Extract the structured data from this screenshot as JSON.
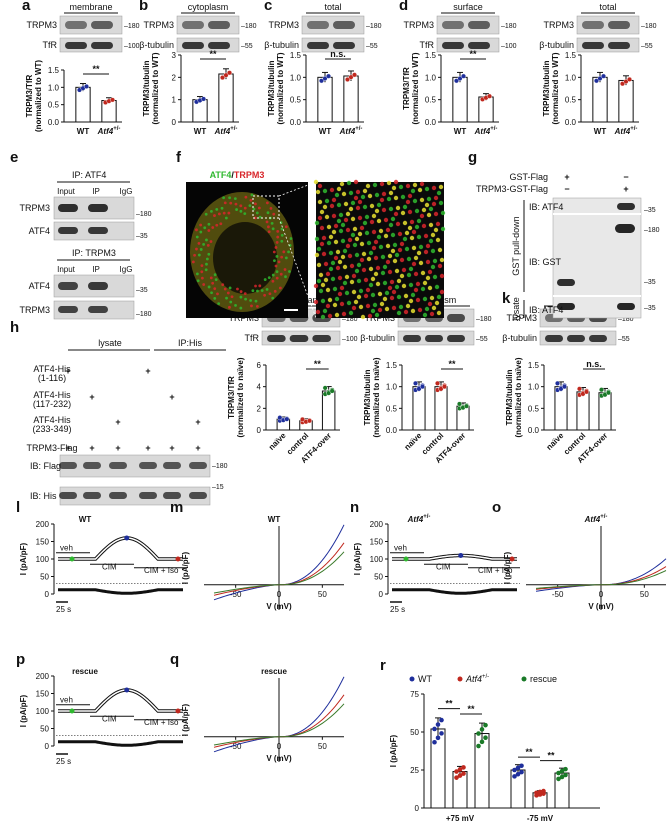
{
  "panels": {
    "a": {
      "letter": "a",
      "header": "membrane",
      "blot_top": "TRPM3",
      "blot_bot": "TfR",
      "mw_top": "180",
      "mw_bot": "100",
      "ylabel1": "TRPM3/TfR",
      "ylabel2": "(normalized to WT)",
      "ticks": [
        "0.0",
        "0.5",
        "1.0",
        "1.5"
      ],
      "sig": "**",
      "x": [
        "WT",
        "Atf4+/-"
      ]
    },
    "b": {
      "letter": "b",
      "header": "cytoplasm",
      "blot_top": "TRPM3",
      "blot_bot": "β-tubulin",
      "mw_top": "180",
      "mw_bot": "55",
      "ylabel1": "TRPM3/tubulin",
      "ylabel2": "(normalized to WT)",
      "ticks": [
        "0",
        "1",
        "2",
        "3"
      ],
      "sig": "**",
      "x": [
        "WT",
        "Atf4+/-"
      ]
    },
    "c": {
      "letter": "c",
      "header": "total",
      "blot_top": "TRPM3",
      "blot_bot": "β-tubulin",
      "mw_top": "180",
      "mw_bot": "55",
      "ylabel1": "TRPM3/tubulin",
      "ylabel2": "(normalized to WT)",
      "ticks": [
        "0.0",
        "0.5",
        "1.0",
        "1.5"
      ],
      "sig": "n.s.",
      "x": [
        "WT",
        "Atf4+/-"
      ]
    },
    "d": {
      "letter": "d",
      "header": "surface",
      "blot_top": "TRPM3",
      "blot_bot": "TfR",
      "mw_top": "180",
      "mw_bot": "100",
      "ylabel1": "TRPM3/TfR",
      "ylabel2": "(normalized to WT)",
      "ticks": [
        "0.0",
        "0.5",
        "1.0",
        "1.5"
      ],
      "sig": "**",
      "x": [
        "WT",
        "Atf4+/-"
      ]
    },
    "d2": {
      "header": "total",
      "blot_top": "TRPM3",
      "blot_bot": "β-tubulin",
      "mw_top": "180",
      "mw_bot": "55",
      "ylabel1": "TRPM3/tubulin",
      "ylabel2": "(normalized to WT)",
      "ticks": [
        "0.0",
        "0.5",
        "1.0",
        "1.5"
      ],
      "x": [
        "WT",
        "Atf4+/-"
      ]
    },
    "e": {
      "letter": "e",
      "ip1": "IP:",
      "ip1_target": "ATF4",
      "ip2": "IP:",
      "ip2_target": "TRPM3",
      "cols": [
        "Input",
        "IP",
        "IgG"
      ],
      "rows1": [
        "TRPM3",
        "ATF4"
      ],
      "rows2": [
        "ATF4",
        "TRPM3"
      ],
      "mw": [
        "180",
        "35",
        "35",
        "180"
      ]
    },
    "f": {
      "letter": "f",
      "title_green": "ATF4",
      "title_sep": "/",
      "title_red": "TRPM3"
    },
    "g": {
      "letter": "g",
      "row1": "GST-Flag",
      "row2": "TRPM3-GST-Flag",
      "signs1": [
        "+",
        "−"
      ],
      "signs2": [
        "−",
        "+"
      ],
      "side1": "GST pull-down",
      "side2": "lysate",
      "ib1": "IB: ATF4",
      "ib2": "IB:  GST",
      "ib3": "IB: ATF4",
      "mw": [
        "35",
        "180",
        "35",
        "35"
      ]
    },
    "h": {
      "letter": "h",
      "lysate": "lysate",
      "iphis": "IP:His",
      "rows": [
        "ATF4-His",
        "(1-116)",
        "ATF4-His",
        "(117-232)",
        "ATF4-His",
        "(233-349)",
        "TRPM3-Flag"
      ],
      "ib1": "IB: Flag",
      "ib2": "IB: His",
      "mw": [
        "180",
        "15"
      ],
      "plus": "+"
    },
    "i": {
      "letter": "i",
      "header": "membrane",
      "blot_top": "TRPM3",
      "blot_bot": "TfR",
      "mw_top": "180",
      "mw_bot": "100",
      "ylabel1": "TRPM3/TfR",
      "ylabel2": "(normalized to naïve)",
      "ticks": [
        "0",
        "2",
        "4",
        "6"
      ],
      "sig": "**",
      "x": [
        "naïve",
        "control",
        "ATF4-over"
      ]
    },
    "j": {
      "letter": "j",
      "header": "cytoplasm",
      "blot_top": "TRPM3",
      "blot_bot": "β-tubulin",
      "mw_top": "180",
      "mw_bot": "55",
      "ylabel1": "TRPM3/tubulin",
      "ylabel2": "(normalized to naïve)",
      "ticks": [
        "0.0",
        "0.5",
        "1.0",
        "1.5"
      ],
      "sig": "**",
      "x": [
        "naïve",
        "control",
        "ATF4-over"
      ]
    },
    "k": {
      "letter": "k",
      "header": "total",
      "blot_top": "TRPM3",
      "blot_bot": "β-tubulin",
      "mw_top": "180",
      "mw_bot": "55",
      "ylabel1": "TRPM3/tubulin",
      "ylabel2": "(normalized to naïve)",
      "ticks": [
        "0.0",
        "0.5",
        "1.0",
        "1.5"
      ],
      "sig": "n.s.",
      "x": [
        "naïve",
        "control",
        "ATF4-over"
      ]
    },
    "l": {
      "letter": "l",
      "title": "WT",
      "ylabel": "I (pA/pF)",
      "ticks": [
        "200",
        "150",
        "100",
        "50",
        "0"
      ],
      "veh": "veh",
      "cim": "CIM",
      "cimiso": "CIM + Iso",
      "scale": "25 s"
    },
    "m": {
      "letter": "m",
      "title": "WT",
      "ylabel": "I (pA/pF)",
      "xlabel": "V (mV)",
      "xt": [
        "-50",
        "0",
        "50"
      ]
    },
    "n": {
      "letter": "n",
      "title": "Atf4+/-",
      "ylabel": "I (pA/pF)",
      "ticks": [
        "200",
        "150",
        "100",
        "50",
        "0"
      ],
      "veh": "veh",
      "cim": "CIM",
      "cimiso": "CIM + Iso",
      "scale": "25 s"
    },
    "o": {
      "letter": "o",
      "title": "Atf4+/-",
      "ylabel": "I (pA/pF)",
      "xlabel": "V (mV)",
      "xt": [
        "-50",
        "0",
        "50"
      ]
    },
    "p": {
      "letter": "p",
      "title": "rescue",
      "ylabel": "I (pA/pF)",
      "ticks": [
        "200",
        "150",
        "100",
        "50",
        "0"
      ],
      "veh": "veh",
      "cim": "CIM",
      "cimiso": "CIM + Iso",
      "scale": "25 s"
    },
    "q": {
      "letter": "q",
      "title": "rescue",
      "ylabel": "I (pA/pF)",
      "xlabel": "V (mV)",
      "xt": [
        "-50",
        "0",
        "50"
      ]
    },
    "r": {
      "letter": "r",
      "legend": [
        "WT",
        "Atf4+/-",
        "rescue"
      ],
      "ylabel": "I (pA/pF)",
      "ticks": [
        "0",
        "25",
        "50",
        "75"
      ],
      "groups": [
        "+75 mV",
        "-75 mV"
      ],
      "sig": "**"
    }
  },
  "colors": {
    "wt": "#1f2f9c",
    "atf4": "#c0281e",
    "rescue": "#1a7a28",
    "green": "#2fb82f",
    "red": "#d8262b"
  },
  "chart_data": [
    {
      "type": "bar",
      "panel": "a",
      "categories": [
        "WT",
        "Atf4+/-"
      ],
      "values": [
        1.0,
        0.62
      ],
      "ylim": [
        0,
        1.5
      ]
    },
    {
      "type": "bar",
      "panel": "b",
      "categories": [
        "WT",
        "Atf4+/-"
      ],
      "values": [
        1.0,
        2.15
      ],
      "ylim": [
        0,
        3
      ]
    },
    {
      "type": "bar",
      "panel": "c",
      "categories": [
        "WT",
        "Atf4+/-"
      ],
      "values": [
        1.0,
        1.03
      ],
      "ylim": [
        0,
        1.5
      ]
    },
    {
      "type": "bar",
      "panel": "d",
      "categories": [
        "WT",
        "Atf4+/-"
      ],
      "values": [
        1.0,
        0.56
      ],
      "ylim": [
        0,
        1.5
      ]
    },
    {
      "type": "bar",
      "panel": "d2",
      "categories": [
        "WT",
        "Atf4+/-"
      ],
      "values": [
        1.0,
        0.93
      ],
      "ylim": [
        0,
        1.5
      ]
    },
    {
      "type": "bar",
      "panel": "i",
      "categories": [
        "naïve",
        "control",
        "ATF4-over"
      ],
      "values": [
        1.0,
        0.85,
        3.6
      ],
      "ylim": [
        0,
        6
      ]
    },
    {
      "type": "bar",
      "panel": "j",
      "categories": [
        "naïve",
        "control",
        "ATF4-over"
      ],
      "values": [
        1.0,
        1.0,
        0.55
      ],
      "ylim": [
        0,
        1.5
      ]
    },
    {
      "type": "bar",
      "panel": "k",
      "categories": [
        "naïve",
        "control",
        "ATF4-over"
      ],
      "values": [
        1.0,
        0.88,
        0.86
      ],
      "ylim": [
        0,
        1.5
      ]
    },
    {
      "type": "bar",
      "panel": "r",
      "categories": [
        "+75 mV",
        "-75 mV"
      ],
      "series": [
        {
          "name": "WT",
          "values": [
            52,
            25
          ]
        },
        {
          "name": "Atf4+/-",
          "values": [
            24,
            10
          ]
        },
        {
          "name": "rescue",
          "values": [
            49,
            23
          ]
        }
      ],
      "ylim": [
        0,
        75
      ]
    }
  ]
}
